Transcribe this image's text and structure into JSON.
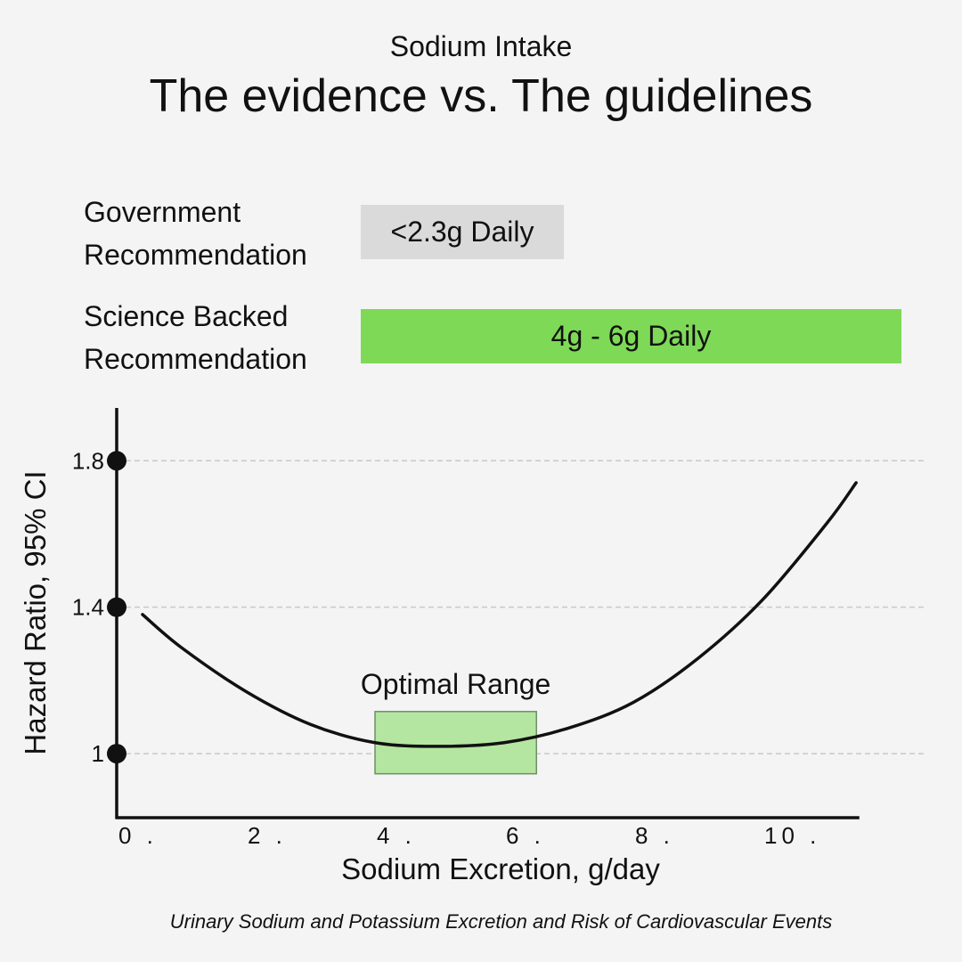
{
  "header": {
    "subtitle": "Sodium Intake",
    "title": "The evidence vs. The guidelines"
  },
  "recommendations": [
    {
      "label_line1": "Government",
      "label_line2": "Recommendation",
      "value": "<2.3g Daily",
      "color": "#dadada"
    },
    {
      "label_line1": "Science Backed",
      "label_line2": "Recommendation",
      "value": "4g - 6g Daily",
      "color": "#7ed957"
    }
  ],
  "chart_data": {
    "type": "line",
    "xlabel": "Sodium Excretion, g/day",
    "ylabel": "Hazard Ratio, 95% CI",
    "xlim": [
      0,
      11.5
    ],
    "ylim": [
      0.825,
      1.955
    ],
    "x_ticks": [
      0,
      2,
      4,
      6,
      8,
      10
    ],
    "x_tick_labels": [
      "0 .",
      "2 .",
      "4 .",
      "6 .",
      "8 .",
      "10 ."
    ],
    "y_ticks": [
      1,
      1.4,
      1.8
    ],
    "y_tick_labels": [
      "1",
      "1.4",
      "1.8"
    ],
    "grid": "horizontal dashed at y ticks",
    "series": [
      {
        "x": [
          0.4,
          1.0,
          2.0,
          3.0,
          4.0,
          5.0,
          6.0,
          7.0,
          8.0,
          9.0,
          10.0,
          11.0,
          11.45
        ],
        "values": [
          1.38,
          1.29,
          1.17,
          1.08,
          1.03,
          1.02,
          1.03,
          1.07,
          1.14,
          1.26,
          1.42,
          1.63,
          1.74
        ]
      }
    ],
    "highlight": {
      "label": "Optimal Range",
      "x_range": [
        4.0,
        6.5
      ],
      "y_range": [
        0.945,
        1.115
      ],
      "color": "#b5e6a1"
    }
  },
  "footnote": "Urinary Sodium and Potassium Excretion and Risk of Cardiovascular Events"
}
